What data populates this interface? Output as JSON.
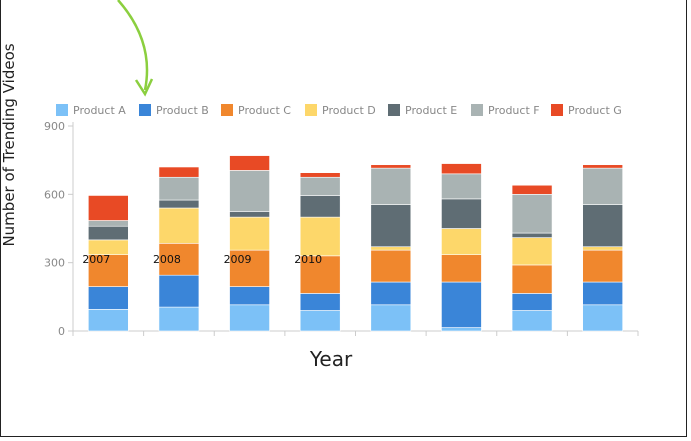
{
  "chart_data": {
    "type": "bar",
    "stacked": true,
    "xlabel": "Year",
    "ylabel": "Number of Trending Videos",
    "ylim": [
      0,
      900
    ],
    "yticks": [
      0,
      300,
      600,
      900
    ],
    "grid": false,
    "legend_position": "top",
    "categories": [
      "",
      "",
      "",
      "",
      "",
      "",
      "",
      ""
    ],
    "in_bar_labels": [
      "2007",
      "2008",
      "2009",
      "2010"
    ],
    "series": [
      {
        "name": "Product A",
        "color": "#7cc1f7",
        "values": [
          95,
          105,
          115,
          90,
          115,
          15,
          90,
          115
        ]
      },
      {
        "name": "Product B",
        "color": "#3a85d8",
        "values": [
          100,
          140,
          80,
          75,
          100,
          200,
          75,
          100
        ]
      },
      {
        "name": "Product C",
        "color": "#f0872d",
        "values": [
          140,
          140,
          160,
          165,
          140,
          120,
          125,
          140
        ]
      },
      {
        "name": "Product D",
        "color": "#fdd76a",
        "values": [
          65,
          155,
          145,
          170,
          15,
          115,
          120,
          15
        ]
      },
      {
        "name": "Product E",
        "color": "#5f6d74",
        "values": [
          60,
          35,
          25,
          95,
          185,
          130,
          20,
          185
        ]
      },
      {
        "name": "Product F",
        "color": "#a9b3b3",
        "values": [
          25,
          100,
          180,
          80,
          160,
          110,
          170,
          160
        ]
      },
      {
        "name": "Product G",
        "color": "#e84a25",
        "values": [
          110,
          45,
          65,
          20,
          15,
          45,
          40,
          15
        ]
      }
    ]
  }
}
